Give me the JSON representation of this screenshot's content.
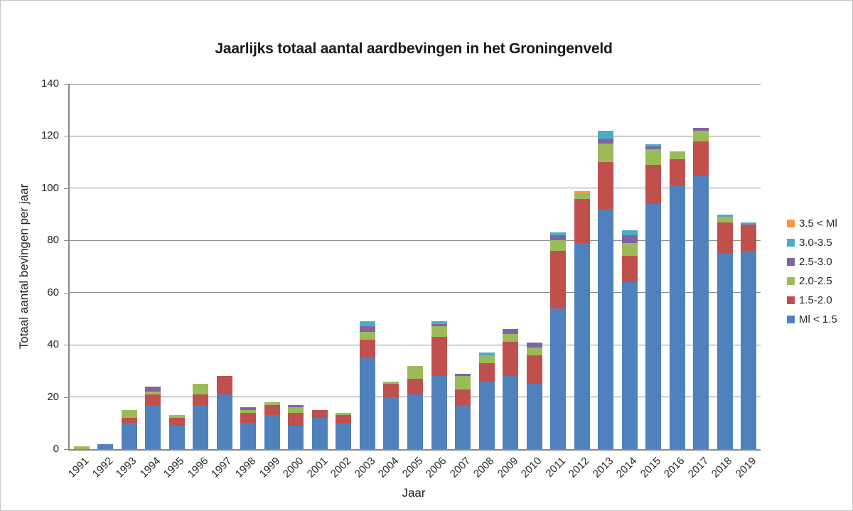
{
  "title": "Jaarlijks totaal aantal aardbevingen in het Groningenveld",
  "chart_data": {
    "type": "bar",
    "stacked": true,
    "title": "Jaarlijks totaal aantal aardbevingen in het Groningenveld",
    "xlabel": "Jaar",
    "ylabel": "Totaal  aantal bevingen per jaar",
    "ylim": [
      0,
      140
    ],
    "y_ticks": [
      0,
      20,
      40,
      60,
      80,
      100,
      120,
      140
    ],
    "grid": true,
    "legend_position": "right",
    "categories": [
      "1991",
      "1992",
      "1993",
      "1994",
      "1995",
      "1996",
      "1997",
      "1998",
      "1999",
      "2000",
      "2001",
      "2002",
      "2003",
      "2004",
      "2005",
      "2006",
      "2007",
      "2008",
      "2009",
      "2010",
      "2011",
      "2012",
      "2013",
      "2014",
      "2015",
      "2016",
      "2017",
      "2018",
      "2019"
    ],
    "series": [
      {
        "name": "Ml < 1.5",
        "color": "#4F81BD",
        "values": [
          0,
          2,
          10,
          17,
          9,
          17,
          21,
          10,
          13,
          9,
          12,
          10,
          35,
          20,
          21,
          28,
          17,
          26,
          28,
          25,
          54,
          79,
          92,
          64,
          94,
          101,
          105,
          75,
          76
        ]
      },
      {
        "name": "1.5-2.0",
        "color": "#C0504D",
        "values": [
          0,
          0,
          2,
          4,
          3,
          4,
          7,
          4,
          4,
          5,
          3,
          3,
          7,
          5,
          6,
          15,
          6,
          7,
          13,
          11,
          22,
          17,
          18,
          10,
          15,
          10,
          13,
          12,
          10
        ]
      },
      {
        "name": "2.0-2.5",
        "color": "#9BBB59",
        "values": [
          1,
          0,
          3,
          1,
          1,
          4,
          0,
          1,
          1,
          2,
          0,
          1,
          3,
          1,
          5,
          4,
          5,
          3,
          3,
          3,
          4,
          2,
          7,
          5,
          6,
          3,
          4,
          2,
          0
        ]
      },
      {
        "name": "2.5-3.0",
        "color": "#8064A2",
        "values": [
          0,
          0,
          0,
          2,
          0,
          0,
          0,
          1,
          0,
          1,
          0,
          0,
          2,
          0,
          0,
          1,
          1,
          0,
          2,
          2,
          2,
          0,
          2,
          3,
          1,
          0,
          1,
          0,
          0
        ]
      },
      {
        "name": "3.0-3.5",
        "color": "#4BACC6",
        "values": [
          0,
          0,
          0,
          0,
          0,
          0,
          0,
          0,
          0,
          0,
          0,
          0,
          2,
          0,
          0,
          1,
          0,
          1,
          0,
          0,
          1,
          0,
          3,
          2,
          1,
          0,
          0,
          1,
          1
        ]
      },
      {
        "name": "3.5 < Ml",
        "color": "#F79646",
        "values": [
          0,
          0,
          0,
          0,
          0,
          0,
          0,
          0,
          0,
          0,
          0,
          0,
          0,
          0,
          0,
          0,
          0,
          0,
          0,
          0,
          0,
          1,
          0,
          0,
          0,
          0,
          0,
          0,
          0
        ]
      }
    ],
    "legend": [
      {
        "label": "3.5 < Ml",
        "color": "#F79646"
      },
      {
        "label": "3.0-3.5",
        "color": "#4BACC6"
      },
      {
        "label": "2.5-3.0",
        "color": "#8064A2"
      },
      {
        "label": "2.0-2.5",
        "color": "#9BBB59"
      },
      {
        "label": "1.5-2.0",
        "color": "#C0504D"
      },
      {
        "label": "Ml < 1.5",
        "color": "#4F81BD"
      }
    ]
  },
  "colors": {
    "gridline": "#8e8e8e",
    "axis": "#898989",
    "text": "#262626",
    "background": "#ffffff"
  }
}
